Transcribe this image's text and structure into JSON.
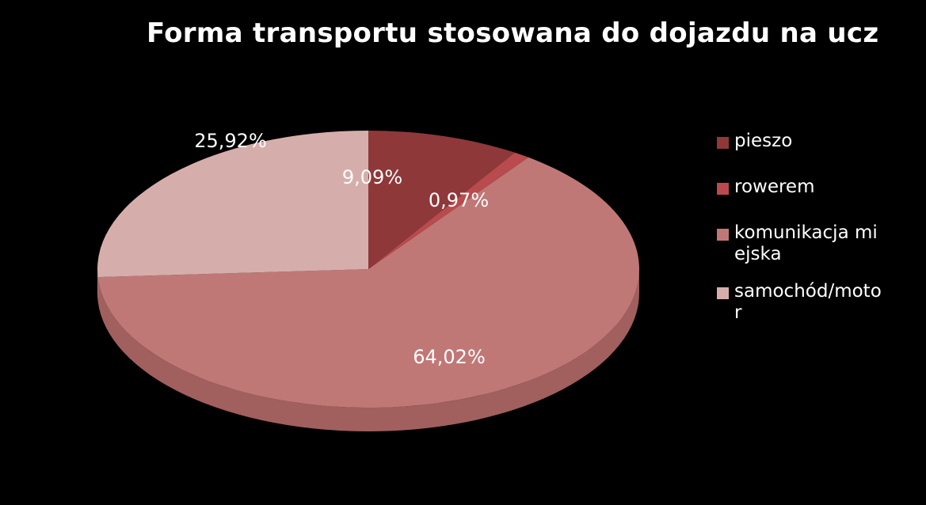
{
  "chart_data": {
    "type": "pie",
    "title": "Forma transportu stosowana do dojazdu na ucz",
    "categories": [
      "pieszo",
      "rowerem",
      "komunikacja miejska",
      "samochód/motor"
    ],
    "values": [
      9.09,
      0.97,
      64.02,
      25.92
    ],
    "data_labels": [
      "9,09%",
      "0,97%",
      "64,02%",
      "25,92%"
    ],
    "colors": [
      "#8e383a",
      "#b94a4d",
      "#c07876",
      "#d5aeac"
    ],
    "side_colors": [
      "#6e2a2c",
      "#8f3638",
      "#a15f5e",
      "#b48f8d"
    ],
    "legend_position": "right",
    "style": "3d"
  }
}
